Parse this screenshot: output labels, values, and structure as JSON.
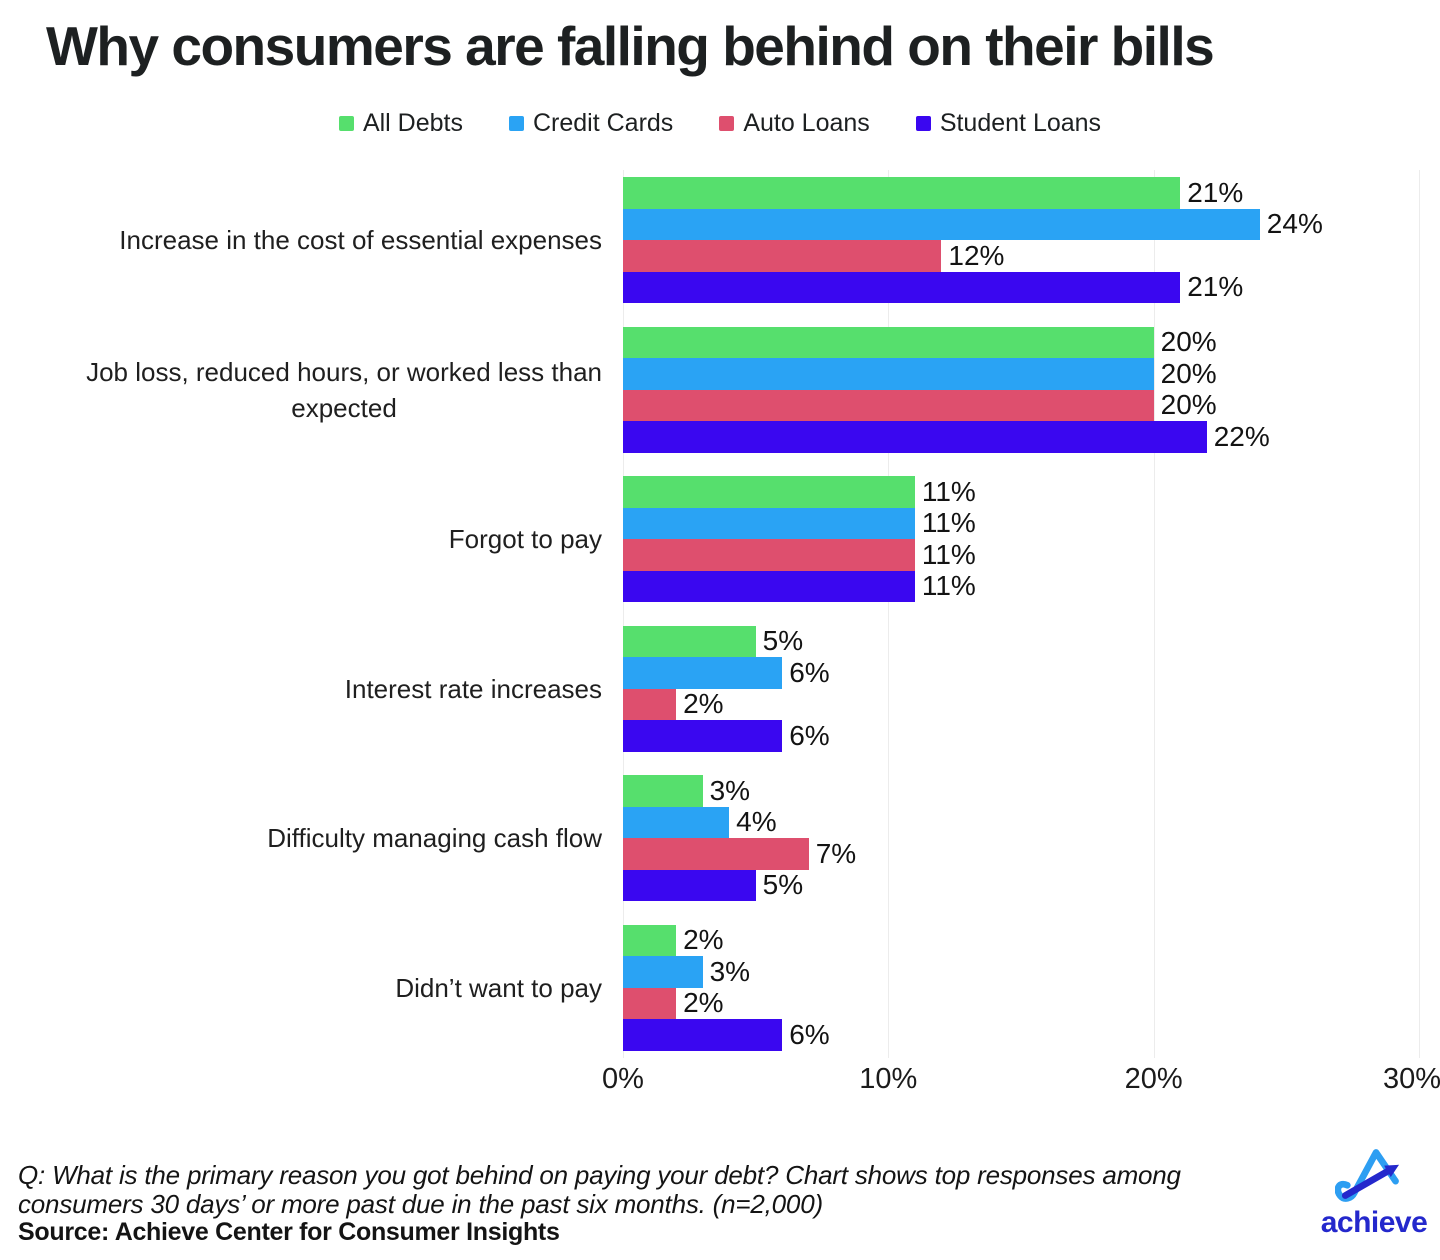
{
  "title": "Why consumers are falling behind on their bills",
  "chart_data": {
    "type": "bar",
    "orientation": "horizontal",
    "title": "Why consumers are falling behind on their bills",
    "categories": [
      "Increase in the cost of essential expenses",
      "Job loss, reduced hours, or worked less than\nexpected",
      "Forgot to pay",
      "Interest rate increases",
      "Difficulty managing cash flow",
      "Didn’t want to pay"
    ],
    "series": [
      {
        "name": "All Debts",
        "color": "#56df6d",
        "values": [
          21,
          20,
          11,
          5,
          3,
          2
        ]
      },
      {
        "name": "Credit Cards",
        "color": "#2aa3f4",
        "values": [
          24,
          20,
          11,
          6,
          4,
          3
        ]
      },
      {
        "name": "Auto Loans",
        "color": "#de4f6e",
        "values": [
          12,
          20,
          11,
          2,
          7,
          2
        ]
      },
      {
        "name": "Student Loans",
        "color": "#3a07f0",
        "values": [
          21,
          22,
          11,
          6,
          5,
          6
        ]
      }
    ],
    "value_suffix": "%",
    "xlabel": "",
    "ylabel": "",
    "axis": {
      "min": 0,
      "max": 30,
      "tick_values": [
        0,
        10,
        20,
        30
      ],
      "tick_labels": [
        "0%",
        "10%",
        "20%",
        "30%"
      ]
    },
    "grid": "vertical-light",
    "legend_position": "top-center",
    "data_labels": "outside-end"
  },
  "footer": {
    "note": "Q: What is the primary reason you got behind on paying your debt? Chart shows top responses among\nconsumers 30 days’ or more past due in the past six months. (n=2,000)",
    "source": "Source: Achieve Center for Consumer Insights",
    "logo": {
      "text": "achieve",
      "color_text": "#2428cc",
      "color_mark_light": "#2d9ef2",
      "color_mark_dark": "#2428cc"
    }
  }
}
